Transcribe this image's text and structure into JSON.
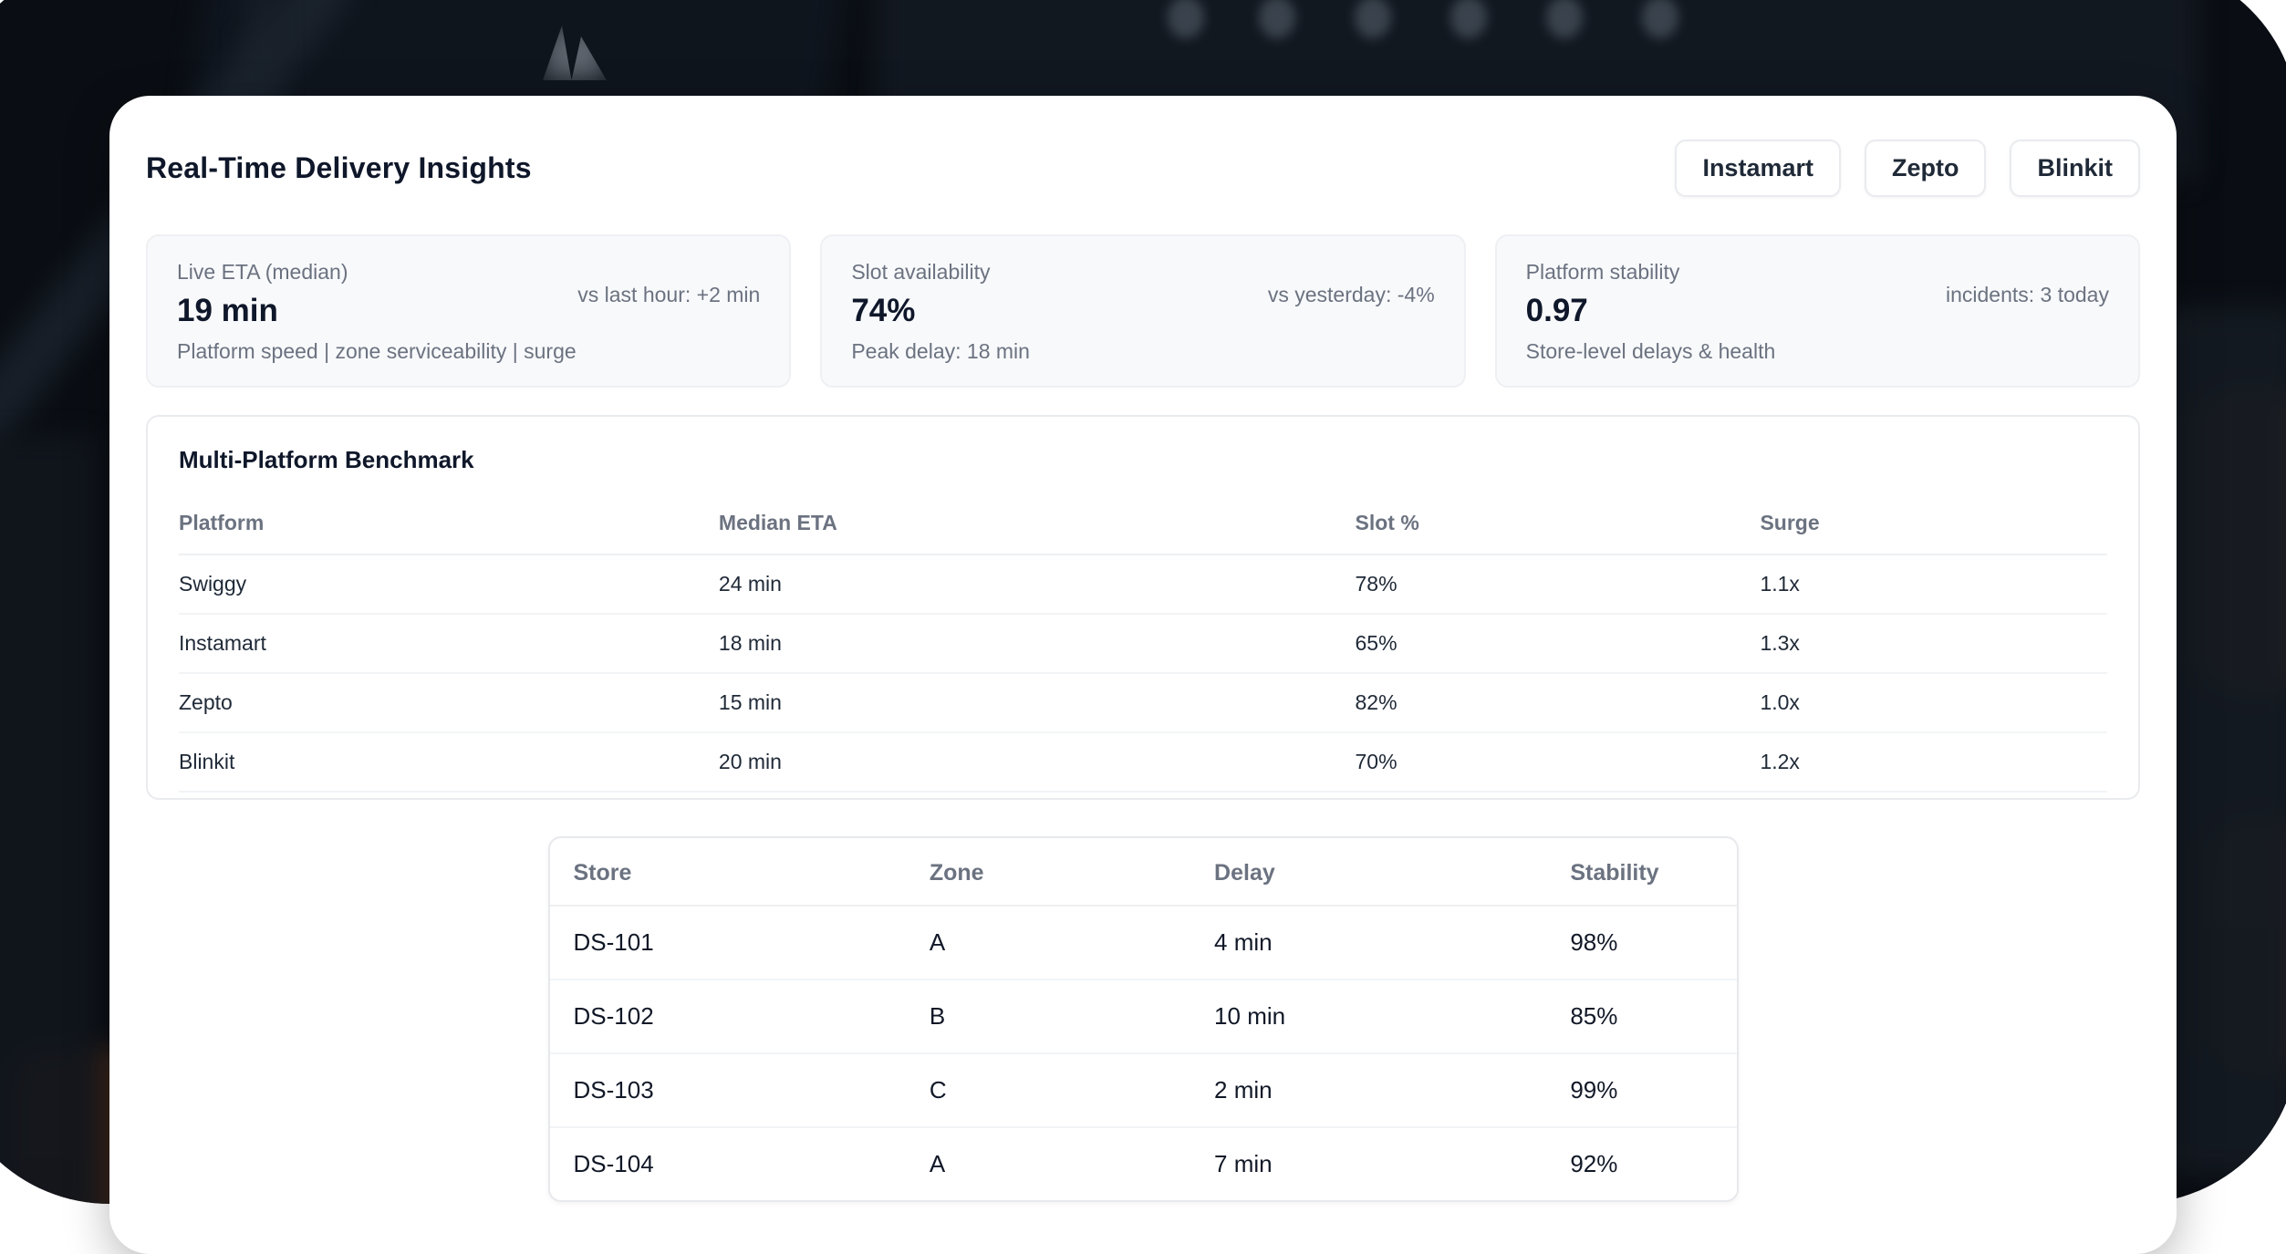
{
  "page": {
    "title": "Real-Time Delivery Insights"
  },
  "header": {
    "platform_buttons": [
      "Instamart",
      "Zepto",
      "Blinkit"
    ]
  },
  "stat_cards": [
    {
      "label": "Live ETA (median)",
      "value": "19 min",
      "comparison": "vs last hour: +2 min",
      "description": "Platform speed | zone serviceability | surge"
    },
    {
      "label": "Slot availability",
      "value": "74%",
      "comparison": "vs yesterday: -4%",
      "description": "Peak delay: 18 min"
    },
    {
      "label": "Platform stability",
      "value": "0.97",
      "comparison": "incidents: 3 today",
      "description": "Store-level delays & health"
    }
  ],
  "benchmark": {
    "title": "Multi-Platform Benchmark",
    "columns": [
      "Platform",
      "Median ETA",
      "Slot %",
      "Surge"
    ],
    "rows": [
      [
        "Swiggy",
        "24 min",
        "78%",
        "1.1x"
      ],
      [
        "Instamart",
        "18 min",
        "65%",
        "1.3x"
      ],
      [
        "Zepto",
        "15 min",
        "82%",
        "1.0x"
      ],
      [
        "Blinkit",
        "20 min",
        "70%",
        "1.2x"
      ]
    ]
  },
  "store_table": {
    "columns": [
      "Store",
      "Zone",
      "Delay",
      "Stability"
    ],
    "rows": [
      [
        "DS-101",
        "A",
        "4 min",
        "98%"
      ],
      [
        "DS-102",
        "B",
        "10 min",
        "85%"
      ],
      [
        "DS-103",
        "C",
        "2 min",
        "99%"
      ],
      [
        "DS-104",
        "A",
        "7 min",
        "92%"
      ]
    ]
  },
  "colors": {
    "backdrop": "#0a0e14",
    "card_background": "#ffffff",
    "stat_card_background": "#f8f9fb",
    "heading_text": "#0f172a",
    "muted_text": "#6b7280",
    "border": "#e9ebee"
  }
}
